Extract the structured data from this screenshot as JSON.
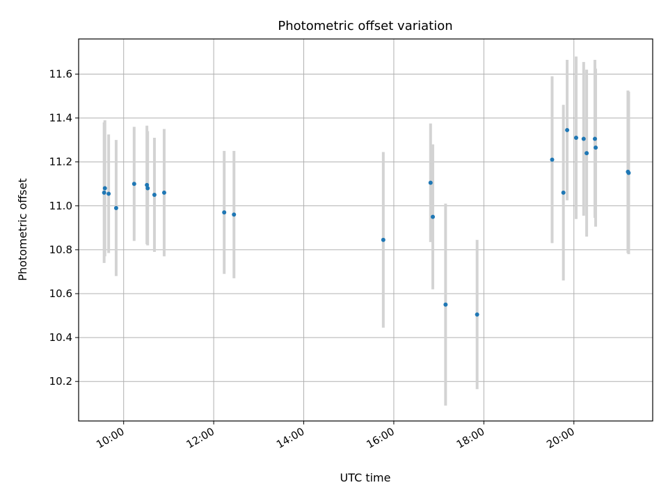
{
  "chart_data": {
    "type": "scatter",
    "title": "Photometric offset variation",
    "xlabel": "UTC time",
    "ylabel": "Photometric offset",
    "x_unit": "hours UTC",
    "xlim": [
      "09:00",
      "21:45"
    ],
    "ylim": [
      10.02,
      11.76
    ],
    "x_ticks": [
      "10:00",
      "12:00",
      "14:00",
      "16:00",
      "18:00",
      "20:00"
    ],
    "y_ticks": [
      10.2,
      10.4,
      10.6,
      10.8,
      11.0,
      11.2,
      11.4,
      11.6
    ],
    "grid": true,
    "marker_color": "#1f77b4",
    "errorbar_color": "#d3d3d3",
    "points": [
      {
        "t": "09:34",
        "y": 11.06,
        "err": 0.32
      },
      {
        "t": "09:35",
        "y": 11.08,
        "err": 0.31
      },
      {
        "t": "09:40",
        "y": 11.055,
        "err": 0.27
      },
      {
        "t": "09:50",
        "y": 10.99,
        "err": 0.31
      },
      {
        "t": "10:14",
        "y": 11.1,
        "err": 0.26
      },
      {
        "t": "10:31",
        "y": 11.095,
        "err": 0.27
      },
      {
        "t": "10:32",
        "y": 11.08,
        "err": 0.26
      },
      {
        "t": "10:41",
        "y": 11.05,
        "err": 0.26
      },
      {
        "t": "10:54",
        "y": 11.06,
        "err": 0.29
      },
      {
        "t": "12:14",
        "y": 10.97,
        "err": 0.28
      },
      {
        "t": "12:27",
        "y": 10.96,
        "err": 0.29
      },
      {
        "t": "15:46",
        "y": 10.845,
        "err": 0.4
      },
      {
        "t": "16:49",
        "y": 11.105,
        "err": 0.27
      },
      {
        "t": "16:52",
        "y": 10.95,
        "err": 0.33
      },
      {
        "t": "17:09",
        "y": 10.55,
        "err": 0.46
      },
      {
        "t": "17:51",
        "y": 10.505,
        "err": 0.34
      },
      {
        "t": "19:31",
        "y": 11.21,
        "err": 0.38
      },
      {
        "t": "19:46",
        "y": 11.06,
        "err": 0.4
      },
      {
        "t": "19:51",
        "y": 11.345,
        "err": 0.32
      },
      {
        "t": "20:03",
        "y": 11.31,
        "err": 0.37
      },
      {
        "t": "20:13",
        "y": 11.305,
        "err": 0.35
      },
      {
        "t": "20:17",
        "y": 11.24,
        "err": 0.38
      },
      {
        "t": "20:28",
        "y": 11.305,
        "err": 0.36
      },
      {
        "t": "20:29",
        "y": 11.265,
        "err": 0.36
      },
      {
        "t": "21:12",
        "y": 11.155,
        "err": 0.37
      },
      {
        "t": "21:13",
        "y": 11.15,
        "err": 0.37
      }
    ]
  }
}
